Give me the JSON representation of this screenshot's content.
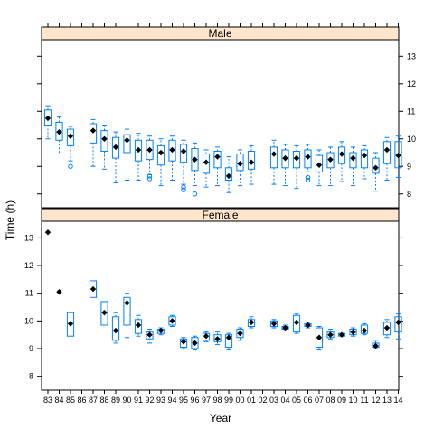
{
  "chart_data": {
    "type": "boxplot",
    "xlabel": "Year",
    "ylabel": "Time (h)",
    "ylim": [
      7.5,
      13.6
    ],
    "yticks": [
      8,
      9,
      10,
      11,
      12,
      13
    ],
    "categories": [
      "83",
      "84",
      "85",
      "86",
      "87",
      "88",
      "89",
      "90",
      "91",
      "92",
      "93",
      "94",
      "95",
      "96",
      "97",
      "98",
      "99",
      "00",
      "01",
      "02",
      "03",
      "04",
      "05",
      "06",
      "07",
      "08",
      "09",
      "10",
      "11",
      "12",
      "13",
      "14"
    ],
    "colors": {
      "box": "#0080ff",
      "median": "#000000",
      "strip": "#ffe5cc"
    },
    "panels": [
      {
        "name": "Male",
        "boxes": [
          {
            "cat": "83",
            "median": 10.75,
            "q1": 10.5,
            "q3": 11.05,
            "lo": 10.0,
            "hi": 11.2,
            "outliers": []
          },
          {
            "cat": "84",
            "median": 10.25,
            "q1": 9.95,
            "q3": 10.6,
            "lo": 9.45,
            "hi": 10.8,
            "outliers": []
          },
          {
            "cat": "85",
            "median": 10.1,
            "q1": 9.75,
            "q3": 10.35,
            "lo": 9.2,
            "hi": 10.45,
            "outliers": [
              9.0
            ]
          },
          {
            "cat": "87",
            "median": 10.3,
            "q1": 9.85,
            "q3": 10.55,
            "lo": 9.0,
            "hi": 10.7,
            "outliers": []
          },
          {
            "cat": "88",
            "median": 10.0,
            "q1": 9.55,
            "q3": 10.3,
            "lo": 8.9,
            "hi": 10.5,
            "outliers": []
          },
          {
            "cat": "89",
            "median": 9.7,
            "q1": 9.3,
            "q3": 10.05,
            "lo": 8.4,
            "hi": 10.25,
            "outliers": []
          },
          {
            "cat": "90",
            "median": 9.95,
            "q1": 9.5,
            "q3": 10.15,
            "lo": 8.5,
            "hi": 10.35,
            "outliers": []
          },
          {
            "cat": "91",
            "median": 9.6,
            "q1": 9.2,
            "q3": 9.95,
            "lo": 8.5,
            "hi": 10.2,
            "outliers": []
          },
          {
            "cat": "92",
            "median": 9.6,
            "q1": 9.25,
            "q3": 9.95,
            "lo": 8.7,
            "hi": 10.1,
            "outliers": [
              8.55,
              8.65
            ]
          },
          {
            "cat": "93",
            "median": 9.5,
            "q1": 9.05,
            "q3": 9.75,
            "lo": 8.3,
            "hi": 10.0,
            "outliers": []
          },
          {
            "cat": "94",
            "median": 9.6,
            "q1": 9.2,
            "q3": 9.95,
            "lo": 8.5,
            "hi": 10.1,
            "outliers": []
          },
          {
            "cat": "95",
            "median": 9.55,
            "q1": 9.15,
            "q3": 9.8,
            "lo": 8.35,
            "hi": 9.95,
            "outliers": [
              8.15,
              8.25
            ]
          },
          {
            "cat": "96",
            "median": 9.25,
            "q1": 8.85,
            "q3": 9.65,
            "lo": 8.3,
            "hi": 9.85,
            "outliers": [
              8.0
            ]
          },
          {
            "cat": "97",
            "median": 9.15,
            "q1": 8.75,
            "q3": 9.45,
            "lo": 8.25,
            "hi": 9.6,
            "outliers": []
          },
          {
            "cat": "98",
            "median": 9.35,
            "q1": 8.95,
            "q3": 9.55,
            "lo": 8.3,
            "hi": 9.7,
            "outliers": []
          },
          {
            "cat": "99",
            "median": 8.65,
            "q1": 8.5,
            "q3": 8.95,
            "lo": 8.05,
            "hi": 9.35,
            "outliers": []
          },
          {
            "cat": "00",
            "median": 9.1,
            "q1": 8.85,
            "q3": 9.45,
            "lo": 8.3,
            "hi": 9.6,
            "outliers": []
          },
          {
            "cat": "01",
            "median": 9.15,
            "q1": 8.9,
            "q3": 9.55,
            "lo": 8.35,
            "hi": 9.75,
            "outliers": []
          },
          {
            "cat": "03",
            "median": 9.45,
            "q1": 8.95,
            "q3": 9.7,
            "lo": 8.35,
            "hi": 9.95,
            "outliers": []
          },
          {
            "cat": "04",
            "median": 9.3,
            "q1": 8.95,
            "q3": 9.6,
            "lo": 8.3,
            "hi": 9.8,
            "outliers": []
          },
          {
            "cat": "05",
            "median": 9.3,
            "q1": 8.95,
            "q3": 9.55,
            "lo": 8.2,
            "hi": 9.75,
            "outliers": []
          },
          {
            "cat": "06",
            "median": 9.35,
            "q1": 8.95,
            "q3": 9.6,
            "lo": 8.8,
            "hi": 9.8,
            "outliers": [
              8.5,
              8.6
            ]
          },
          {
            "cat": "07",
            "median": 9.05,
            "q1": 8.8,
            "q3": 9.4,
            "lo": 8.3,
            "hi": 9.6,
            "outliers": []
          },
          {
            "cat": "08",
            "median": 9.25,
            "q1": 8.95,
            "q3": 9.5,
            "lo": 8.3,
            "hi": 9.7,
            "outliers": []
          },
          {
            "cat": "09",
            "median": 9.45,
            "q1": 9.1,
            "q3": 9.7,
            "lo": 8.45,
            "hi": 9.9,
            "outliers": []
          },
          {
            "cat": "10",
            "median": 9.3,
            "q1": 8.95,
            "q3": 9.5,
            "lo": 8.3,
            "hi": 9.7,
            "outliers": []
          },
          {
            "cat": "11",
            "median": 9.4,
            "q1": 8.95,
            "q3": 9.6,
            "lo": 8.55,
            "hi": 9.75,
            "outliers": []
          },
          {
            "cat": "12",
            "median": 8.95,
            "q1": 8.75,
            "q3": 9.3,
            "lo": 8.1,
            "hi": 9.5,
            "outliers": []
          },
          {
            "cat": "13",
            "median": 9.6,
            "q1": 9.1,
            "q3": 9.9,
            "lo": 8.5,
            "hi": 10.05,
            "outliers": []
          },
          {
            "cat": "14",
            "median": 9.4,
            "q1": 8.95,
            "q3": 9.9,
            "lo": 8.6,
            "hi": 10.1,
            "outliers": []
          }
        ]
      },
      {
        "name": "Female",
        "boxes": [
          {
            "cat": "83",
            "median": 13.2,
            "q1": 13.2,
            "q3": 13.2,
            "lo": 13.2,
            "hi": 13.2,
            "outliers": []
          },
          {
            "cat": "84",
            "median": 11.05,
            "q1": 11.05,
            "q3": 11.05,
            "lo": 11.05,
            "hi": 11.05,
            "outliers": []
          },
          {
            "cat": "85",
            "median": 9.9,
            "q1": 9.45,
            "q3": 10.3,
            "lo": 9.45,
            "hi": 10.3,
            "outliers": []
          },
          {
            "cat": "87",
            "median": 11.15,
            "q1": 10.85,
            "q3": 11.45,
            "lo": 10.85,
            "hi": 11.45,
            "outliers": []
          },
          {
            "cat": "88",
            "median": 10.3,
            "q1": 9.85,
            "q3": 10.7,
            "lo": 9.85,
            "hi": 10.7,
            "outliers": []
          },
          {
            "cat": "89",
            "median": 9.65,
            "q1": 9.3,
            "q3": 10.15,
            "lo": 9.2,
            "hi": 10.3,
            "outliers": []
          },
          {
            "cat": "90",
            "median": 10.65,
            "q1": 9.85,
            "q3": 10.85,
            "lo": 9.4,
            "hi": 11.0,
            "outliers": []
          },
          {
            "cat": "91",
            "median": 9.85,
            "q1": 9.55,
            "q3": 10.05,
            "lo": 9.45,
            "hi": 10.2,
            "outliers": []
          },
          {
            "cat": "92",
            "median": 9.5,
            "q1": 9.35,
            "q3": 9.6,
            "lo": 9.2,
            "hi": 9.7,
            "outliers": []
          },
          {
            "cat": "93",
            "median": 9.65,
            "q1": 9.55,
            "q3": 9.7,
            "lo": 9.5,
            "hi": 9.75,
            "outliers": []
          },
          {
            "cat": "94",
            "median": 10.0,
            "q1": 9.85,
            "q3": 10.15,
            "lo": 9.8,
            "hi": 10.2,
            "outliers": []
          },
          {
            "cat": "95",
            "median": 9.25,
            "q1": 9.05,
            "q3": 9.35,
            "lo": 9.0,
            "hi": 9.4,
            "outliers": []
          },
          {
            "cat": "96",
            "median": 9.2,
            "q1": 9.0,
            "q3": 9.4,
            "lo": 8.95,
            "hi": 9.45,
            "outliers": []
          },
          {
            "cat": "97",
            "median": 9.45,
            "q1": 9.3,
            "q3": 9.55,
            "lo": 9.25,
            "hi": 9.6,
            "outliers": []
          },
          {
            "cat": "98",
            "median": 9.35,
            "q1": 9.25,
            "q3": 9.5,
            "lo": 9.15,
            "hi": 9.6,
            "outliers": []
          },
          {
            "cat": "99",
            "median": 9.4,
            "q1": 9.05,
            "q3": 9.5,
            "lo": 8.95,
            "hi": 9.55,
            "outliers": []
          },
          {
            "cat": "00",
            "median": 9.55,
            "q1": 9.4,
            "q3": 9.7,
            "lo": 9.3,
            "hi": 9.75,
            "outliers": []
          },
          {
            "cat": "01",
            "median": 9.95,
            "q1": 9.8,
            "q3": 10.05,
            "lo": 9.75,
            "hi": 10.15,
            "outliers": []
          },
          {
            "cat": "03",
            "median": 9.9,
            "q1": 9.8,
            "q3": 10.0,
            "lo": 9.75,
            "hi": 10.05,
            "outliers": []
          },
          {
            "cat": "04",
            "median": 9.75,
            "q1": 9.7,
            "q3": 9.8,
            "lo": 9.7,
            "hi": 9.85,
            "outliers": []
          },
          {
            "cat": "05",
            "median": 9.95,
            "q1": 9.6,
            "q3": 10.2,
            "lo": 9.55,
            "hi": 10.25,
            "outliers": []
          },
          {
            "cat": "06",
            "median": 9.85,
            "q1": 9.8,
            "q3": 9.9,
            "lo": 9.75,
            "hi": 9.95,
            "outliers": []
          },
          {
            "cat": "07",
            "median": 9.4,
            "q1": 9.05,
            "q3": 9.75,
            "lo": 8.95,
            "hi": 9.8,
            "outliers": []
          },
          {
            "cat": "08",
            "median": 9.5,
            "q1": 9.4,
            "q3": 9.6,
            "lo": 9.35,
            "hi": 9.7,
            "outliers": []
          },
          {
            "cat": "09",
            "median": 9.5,
            "q1": 9.45,
            "q3": 9.55,
            "lo": 9.45,
            "hi": 9.55,
            "outliers": []
          },
          {
            "cat": "10",
            "median": 9.6,
            "q1": 9.5,
            "q3": 9.7,
            "lo": 9.45,
            "hi": 9.75,
            "outliers": []
          },
          {
            "cat": "11",
            "median": 9.65,
            "q1": 9.55,
            "q3": 9.85,
            "lo": 9.5,
            "hi": 9.9,
            "outliers": []
          },
          {
            "cat": "12",
            "median": 9.1,
            "q1": 9.05,
            "q3": 9.2,
            "lo": 9.0,
            "hi": 9.3,
            "outliers": []
          },
          {
            "cat": "13",
            "median": 9.75,
            "q1": 9.5,
            "q3": 9.95,
            "lo": 9.4,
            "hi": 10.05,
            "outliers": []
          },
          {
            "cat": "14",
            "median": 9.95,
            "q1": 9.6,
            "q3": 10.15,
            "lo": 9.35,
            "hi": 10.25,
            "outliers": []
          }
        ]
      }
    ]
  }
}
